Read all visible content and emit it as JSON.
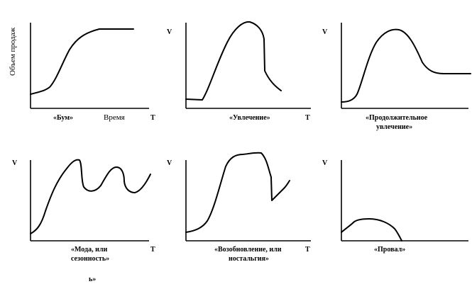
{
  "axis_labels": {
    "y_rotated": "Объем продаж",
    "v": "V",
    "t": "T",
    "time": "Время"
  },
  "panels": [
    {
      "id": "boom",
      "caption": [
        "«Бум»"
      ]
    },
    {
      "id": "fad",
      "caption": [
        "«Увлечение»"
      ]
    },
    {
      "id": "extended-fad",
      "caption": [
        "«Продолжительное",
        "увлечение»"
      ]
    },
    {
      "id": "seasonal",
      "caption": [
        "«Мода, или",
        "сезонность»"
      ]
    },
    {
      "id": "revival",
      "caption": [
        "«Возобновление, или",
        "ностальгия»"
      ]
    },
    {
      "id": "bust",
      "caption": [
        "«Провал»"
      ]
    }
  ],
  "stray_text": "ь»"
}
